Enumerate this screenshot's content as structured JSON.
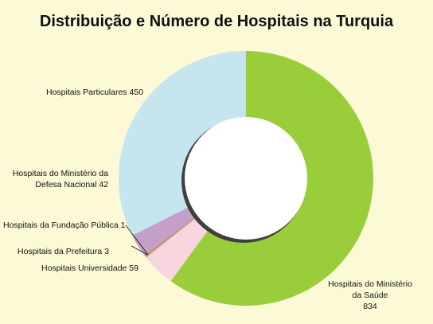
{
  "title": "Distribuição e Número de Hospitais na Turquia",
  "chart_data": {
    "type": "pie",
    "variant": "donut",
    "title": "Distribuição e Número de Hospitais na Turquia",
    "slices": [
      {
        "label": "Hospitais do Ministério da Saúde",
        "value": 834,
        "color": "#9acd3a",
        "label_lines": [
          "Hospitais do Ministério",
          "da Saúde",
          "834"
        ]
      },
      {
        "label": "Hospitais Universidade",
        "value": 59,
        "color": "#f8d6df",
        "label_lines": [
          "Hospitais Universidade 59"
        ]
      },
      {
        "label": "Hospitais da Prefeitura",
        "value": 3,
        "color": "#e0b07a",
        "label_lines": [
          "Hospitais da Prefeitura 3"
        ]
      },
      {
        "label": "Hospitais da Fundação Pública",
        "value": 1,
        "color": "#8b2a4a",
        "label_lines": [
          "Hospitais da Fundação Pública 1"
        ]
      },
      {
        "label": "Hospitais do Ministério da Defesa Nacional",
        "value": 42,
        "color": "#c4a0c8",
        "label_lines": [
          "Hospitais do Ministério da",
          "Defesa Nacional 42"
        ]
      },
      {
        "label": "Hospitais Particulares",
        "value": 450,
        "color": "#c5e6ef",
        "label_lines": [
          "Hospitais Particulares 450"
        ]
      }
    ],
    "legend": "none",
    "colors": {
      "background": "#fbf9d6",
      "shadow": "#3f3f3f"
    }
  }
}
